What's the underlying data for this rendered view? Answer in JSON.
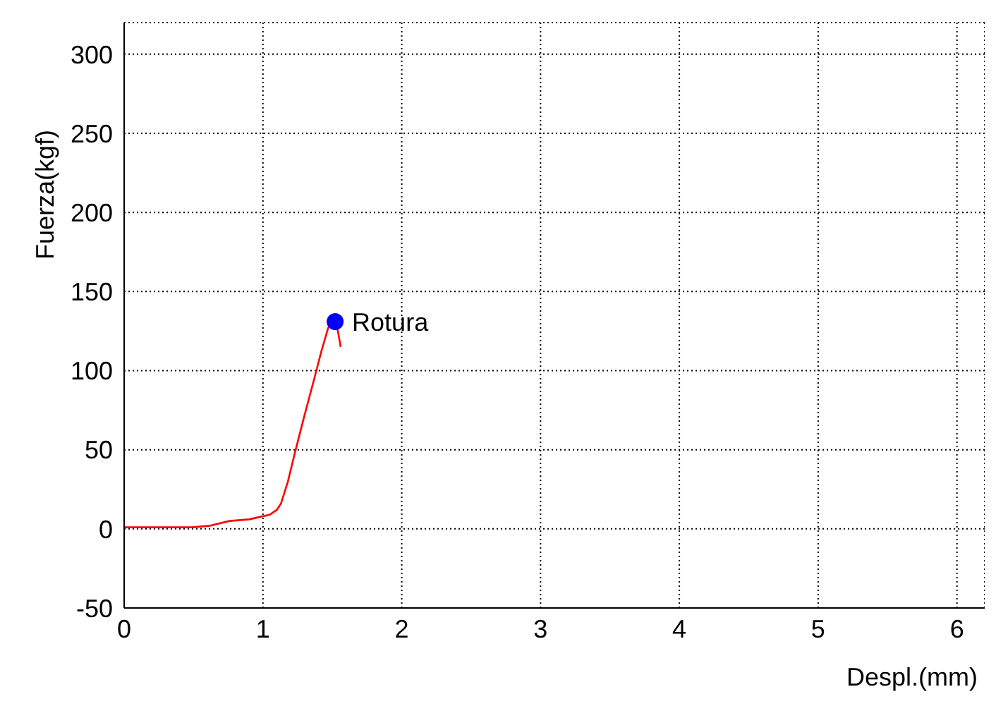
{
  "chart_data": {
    "type": "line",
    "xlabel": "Despl.(mm)",
    "ylabel": "Fuerza(kgf)",
    "xlim": [
      0,
      6.2
    ],
    "xticks": [
      0,
      1,
      2,
      3,
      4,
      5,
      6
    ],
    "ylim": [
      -50,
      320
    ],
    "yticks": [
      -50,
      0,
      50,
      100,
      150,
      200,
      250,
      300
    ],
    "grid": true,
    "series": [
      {
        "color": "#ff0000",
        "x": [
          0,
          0.25,
          0.49,
          0.62,
          0.76,
          0.9,
          1.0,
          1.05,
          1.1,
          1.13,
          1.18,
          1.23,
          1.3,
          1.37,
          1.42,
          1.47,
          1.52,
          1.54,
          1.56
        ],
        "values": [
          1,
          1,
          1,
          2,
          5,
          6,
          8,
          9,
          12,
          16,
          30,
          48,
          72,
          95,
          112,
          127,
          131,
          125,
          115
        ]
      },
      {
        "type": "scatter",
        "color": "#0000ff",
        "x": [
          1.52
        ],
        "values": [
          131
        ]
      }
    ],
    "annotations": [
      {
        "text": "Rotura",
        "x": 1.52,
        "y": 131
      }
    ]
  }
}
